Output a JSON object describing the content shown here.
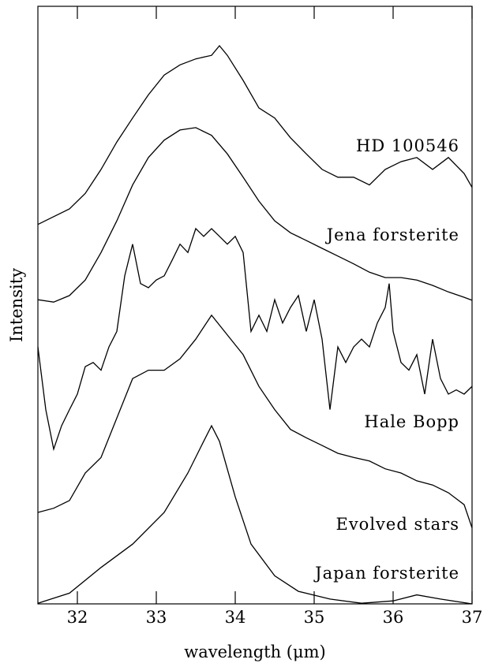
{
  "chart_data": {
    "type": "line",
    "x_label": "wavelength (μm)",
    "y_label": "Intensity",
    "xlim": [
      31.5,
      37
    ],
    "ylim": [
      0,
      100
    ],
    "xticks": [
      32,
      33,
      34,
      35,
      36,
      37
    ],
    "color": "#000000",
    "series": [
      {
        "name": "HD 100546",
        "x": [
          31.5,
          31.7,
          31.9,
          32.1,
          32.3,
          32.5,
          32.7,
          32.9,
          33.1,
          33.3,
          33.5,
          33.7,
          33.8,
          33.9,
          34.1,
          34.3,
          34.5,
          34.7,
          34.9,
          35.1,
          35.3,
          35.5,
          35.7,
          35.9,
          36.1,
          36.3,
          36.5,
          36.7,
          36.9,
          37
        ],
        "values": [
          63.5,
          64.8,
          66.1,
          68.7,
          72.7,
          77.3,
          81.3,
          85.2,
          88.5,
          90.2,
          91.2,
          91.8,
          93.4,
          91.8,
          87.6,
          83.0,
          81.3,
          78.0,
          75.3,
          72.7,
          71.4,
          71.4,
          70.1,
          72.7,
          74.0,
          74.7,
          72.7,
          74.7,
          72.0,
          69.7
        ]
      },
      {
        "name": "Jena forsterite",
        "x": [
          31.5,
          31.7,
          31.9,
          32.1,
          32.3,
          32.5,
          32.7,
          32.9,
          33.1,
          33.3,
          33.5,
          33.7,
          33.9,
          34.1,
          34.3,
          34.5,
          34.7,
          34.9,
          35.1,
          35.3,
          35.5,
          35.7,
          35.9,
          36.1,
          36.3,
          36.5,
          36.7,
          36.9,
          37
        ],
        "values": [
          50.9,
          50.5,
          51.6,
          54.2,
          58.8,
          64.1,
          70.1,
          74.7,
          77.6,
          79.3,
          79.7,
          78.4,
          75.3,
          71.4,
          67.4,
          64.1,
          62.1,
          60.8,
          59.5,
          58.2,
          56.9,
          55.5,
          54.6,
          54.6,
          54.2,
          53.3,
          52.2,
          51.3,
          50.8
        ]
      },
      {
        "name": "Hale Bopp",
        "x": [
          31.5,
          31.6,
          31.7,
          31.8,
          31.9,
          32.0,
          32.1,
          32.2,
          32.3,
          32.4,
          32.5,
          32.6,
          32.7,
          32.8,
          32.9,
          33.0,
          33.1,
          33.2,
          33.3,
          33.4,
          33.5,
          33.6,
          33.7,
          33.8,
          33.9,
          34.0,
          34.1,
          34.2,
          34.3,
          34.4,
          34.5,
          34.6,
          34.7,
          34.8,
          34.9,
          35.0,
          35.1,
          35.2,
          35.3,
          35.4,
          35.5,
          35.6,
          35.7,
          35.8,
          35.9,
          35.95,
          36.0,
          36.1,
          36.2,
          36.3,
          36.4,
          36.5,
          36.6,
          36.7,
          36.8,
          36.9,
          37.0
        ],
        "values": [
          43.0,
          32.5,
          25.9,
          29.8,
          32.5,
          35.1,
          39.7,
          40.4,
          39.1,
          43.0,
          45.6,
          54.9,
          60.2,
          53.6,
          52.9,
          54.2,
          54.9,
          57.5,
          60.2,
          58.8,
          62.8,
          61.5,
          62.8,
          61.5,
          60.2,
          61.5,
          58.8,
          45.6,
          48.3,
          45.6,
          50.9,
          47.0,
          49.6,
          51.6,
          45.6,
          50.9,
          44.3,
          32.5,
          43.0,
          40.4,
          43.0,
          44.3,
          43.0,
          47.0,
          49.6,
          53.6,
          45.6,
          40.4,
          39.1,
          41.7,
          35.1,
          44.3,
          37.7,
          35.1,
          35.8,
          35.1,
          36.4
        ]
      },
      {
        "name": "Evolved stars",
        "x": [
          31.5,
          31.7,
          31.9,
          32.1,
          32.3,
          32.5,
          32.7,
          32.9,
          33.1,
          33.3,
          33.5,
          33.7,
          33.9,
          34.1,
          34.3,
          34.5,
          34.7,
          34.9,
          35.1,
          35.3,
          35.5,
          35.7,
          35.9,
          36.1,
          36.3,
          36.5,
          36.7,
          36.9,
          37
        ],
        "values": [
          15.3,
          16.0,
          17.3,
          21.9,
          24.5,
          31.1,
          37.7,
          39.1,
          39.1,
          41.0,
          44.3,
          48.3,
          45.0,
          41.7,
          36.4,
          32.5,
          29.2,
          27.8,
          26.5,
          25.2,
          24.5,
          23.9,
          22.6,
          21.9,
          20.6,
          19.9,
          18.6,
          16.6,
          12.7
        ]
      },
      {
        "name": "Japan forsterite",
        "x": [
          31.5,
          31.9,
          32.3,
          32.7,
          33.1,
          33.4,
          33.6,
          33.7,
          33.8,
          34.0,
          34.2,
          34.5,
          34.8,
          35.2,
          35.6,
          36.0,
          36.3,
          36.6,
          37
        ],
        "values": [
          0.1,
          1.8,
          6.1,
          10.0,
          15.3,
          21.9,
          27.2,
          29.8,
          27.2,
          17.9,
          10.0,
          4.7,
          2.1,
          0.8,
          0.1,
          0.5,
          1.5,
          0.8,
          0
        ]
      }
    ]
  }
}
